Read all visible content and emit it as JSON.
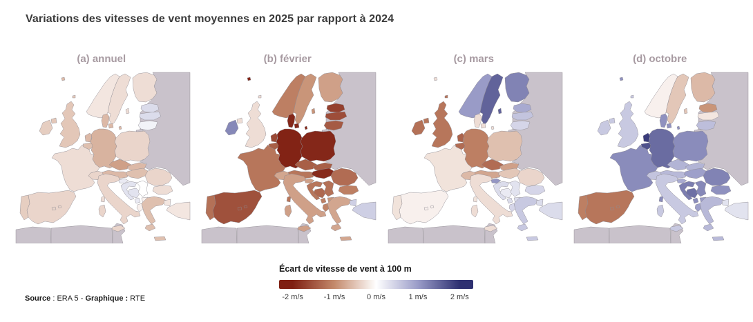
{
  "title": "Variations des vitesses de vent moyennes en 2025 par rapport à 2024",
  "source": {
    "parts": [
      {
        "text": "Source",
        "bold": true
      },
      {
        "text": " : ERA 5 - ",
        "bold": false
      },
      {
        "text": "Graphique :",
        "bold": true
      },
      {
        "text": " RTE",
        "bold": false
      }
    ]
  },
  "colorbar": {
    "title": "Écart de vitesse de vent à 100 m",
    "min": -2,
    "max": 2,
    "unit": "m/s",
    "stops": [
      "#7f1f12",
      "#c48a6c",
      "#ffffff",
      "#9a9cc8",
      "#2e3071"
    ],
    "ticks": [
      "-2 m/s",
      "-1 m/s",
      "0 m/s",
      "1 m/s",
      "2 m/s"
    ],
    "no_data_color": "#c9c2cb"
  },
  "chart_data": {
    "type": "choropleth",
    "unit": "m/s",
    "value_label": "Écart de vitesse de vent à 100 m",
    "panels": [
      {
        "key": "annuel",
        "label": "(a) annuel",
        "values": {
          "norway": -0.1,
          "sweden": -0.15,
          "finland": -0.15,
          "estonia": 0.2,
          "latvia": 0.2,
          "lithuania": 0.05,
          "denmark": -0.4,
          "uk": -0.3,
          "ireland": -0.25,
          "netherlands": -0.4,
          "belgium": -0.35,
          "germany": -0.45,
          "poland": -0.2,
          "czechia": -0.6,
          "slovakia": -0.4,
          "austria": -0.4,
          "switzerland": -0.2,
          "france": -0.15,
          "spain": -0.2,
          "portugal": -0.25,
          "italy": -0.2,
          "slovenia": 0.1,
          "croatia": 0.15,
          "bosnia": 0.15,
          "serbia": 0.0,
          "montenegro": 0.1,
          "albania": -0.05,
          "north_macedonia": -0.05,
          "hungary": -0.35,
          "romania": -0.2,
          "bulgaria": -0.15,
          "greece": -0.35,
          "turkey": -0.1
        }
      },
      {
        "key": "fevrier",
        "label": "(b) février",
        "values": {
          "norway": -0.9,
          "sweden": -0.7,
          "finland": -0.6,
          "estonia": -1.6,
          "latvia": -1.45,
          "lithuania": -1.3,
          "denmark": -1.9,
          "uk": -0.15,
          "ireland": 1.0,
          "netherlands": -1.5,
          "belgium": -1.25,
          "germany": -1.95,
          "poland": -1.9,
          "czechia": -1.25,
          "slovakia": -1.25,
          "austria": -1.0,
          "switzerland": -0.55,
          "france": -1.0,
          "spain": -1.4,
          "portugal": -1.05,
          "italy": -0.6,
          "slovenia": -0.6,
          "croatia": -1.0,
          "bosnia": -1.15,
          "serbia": -1.05,
          "montenegro": -0.9,
          "albania": -0.85,
          "north_macedonia": -0.7,
          "hungary": -1.85,
          "romania": -1.1,
          "bulgaria": -0.9,
          "greece": -0.55,
          "turkey": 0.3
        }
      },
      {
        "key": "mars",
        "label": "(c) mars",
        "values": {
          "norway": 0.8,
          "sweden": 1.4,
          "finland": 1.05,
          "estonia": 0.65,
          "latvia": 0.4,
          "lithuania": 0.25,
          "denmark": -0.15,
          "uk": -1.0,
          "ireland": -1.05,
          "netherlands": -1.2,
          "belgium": -1.1,
          "germany": -0.9,
          "poland": -0.35,
          "czechia": -1.1,
          "slovakia": -0.6,
          "austria": -0.55,
          "switzerland": -0.4,
          "france": -0.12,
          "spain": -0.05,
          "portugal": -0.12,
          "italy": -0.15,
          "slovenia": 0.85,
          "croatia": 0.2,
          "bosnia": 0.1,
          "serbia": 0.15,
          "montenegro": 0.2,
          "albania": 0.25,
          "north_macedonia": 0.2,
          "hungary": -0.3,
          "romania": -0.2,
          "bulgaria": 0.25,
          "greece": 0.35,
          "turkey": 0.2
        }
      },
      {
        "key": "octobre",
        "label": "(d) octobre",
        "values": {
          "norway": -0.05,
          "sweden": -0.3,
          "finland": -0.4,
          "estonia": -0.7,
          "latvia": -0.1,
          "lithuania": 0.45,
          "denmark": 0.9,
          "uk": 0.35,
          "ireland": 0.35,
          "netherlands": 1.85,
          "belgium": 1.6,
          "germany": 1.3,
          "poland": 0.95,
          "czechia": 0.55,
          "slovakia": 0.55,
          "austria": 0.5,
          "switzerland": 0.4,
          "france": 0.95,
          "spain": -1.0,
          "portugal": -0.9,
          "italy": 0.35,
          "slovenia": 0.65,
          "croatia": 1.1,
          "bosnia": 1.25,
          "serbia": 1.0,
          "montenegro": 0.95,
          "albania": 0.75,
          "north_macedonia": 0.8,
          "hungary": 0.75,
          "romania": 1.05,
          "bulgaria": 0.9,
          "greece": 0.5,
          "turkey": 0.15
        }
      }
    ]
  }
}
